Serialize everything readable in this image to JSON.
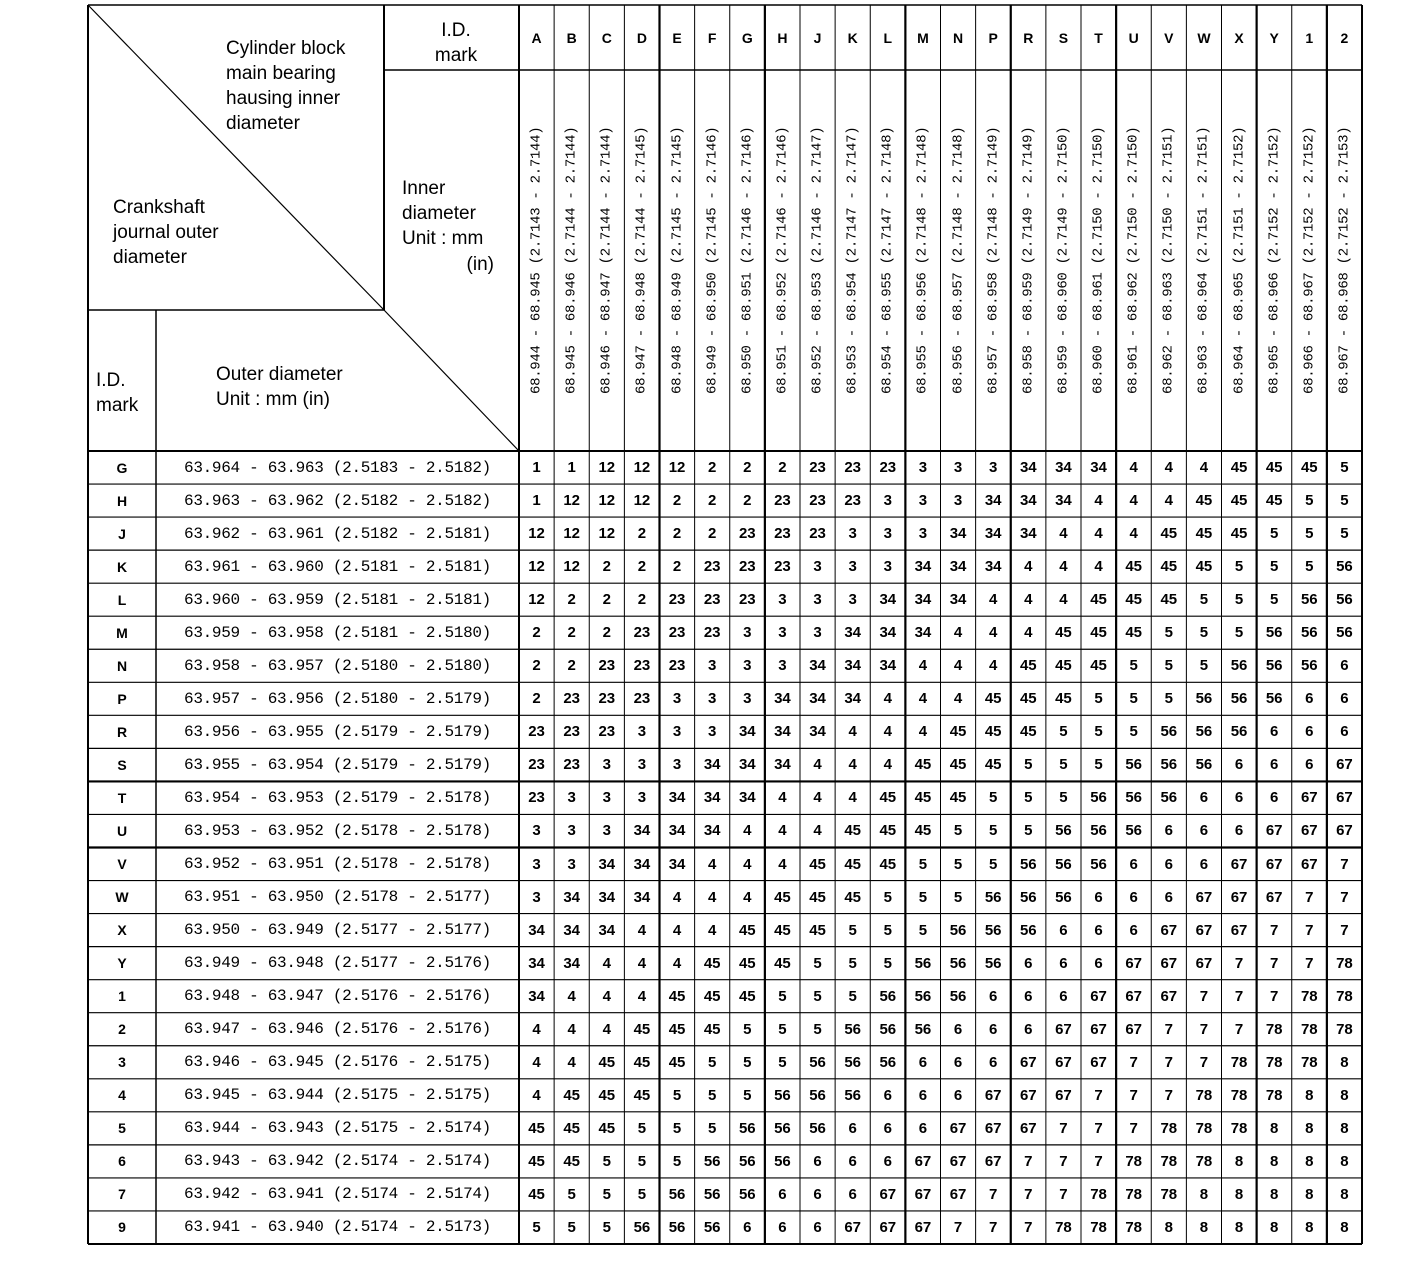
{
  "header": {
    "cylinder_block_label": "Cylinder block main bearing hausing inner diameter",
    "crankshaft_label": "Crankshaft journal outer diameter",
    "id_mark_top": "I.D. mark",
    "inner_diameter_label": "Inner diameter Unit : mm",
    "inner_diameter_unit_in": "(in)",
    "id_mark_left": "I.D. mark",
    "outer_diameter_label": "Outer diameter Unit : mm (in)"
  },
  "columns": [
    {
      "mark": "A",
      "range": "68.944 - 68.945 (2.7143 - 2.7144)"
    },
    {
      "mark": "B",
      "range": "68.945 - 68.946 (2.7144 - 2.7144)"
    },
    {
      "mark": "C",
      "range": "68.946 - 68.947 (2.7144 - 2.7144)"
    },
    {
      "mark": "D",
      "range": "68.947 - 68.948 (2.7144 - 2.7145)"
    },
    {
      "mark": "E",
      "range": "68.948 - 68.949 (2.7145 - 2.7145)"
    },
    {
      "mark": "F",
      "range": "68.949 - 68.950 (2.7145 - 2.7146)"
    },
    {
      "mark": "G",
      "range": "68.950 - 68.951 (2.7146 - 2.7146)"
    },
    {
      "mark": "H",
      "range": "68.951 - 68.952 (2.7146 - 2.7146)"
    },
    {
      "mark": "J",
      "range": "68.952 - 68.953 (2.7146 - 2.7147)"
    },
    {
      "mark": "K",
      "range": "68.953 - 68.954 (2.7147 - 2.7147)"
    },
    {
      "mark": "L",
      "range": "68.954 - 68.955 (2.7147 - 2.7148)"
    },
    {
      "mark": "M",
      "range": "68.955 - 68.956 (2.7148 - 2.7148)"
    },
    {
      "mark": "N",
      "range": "68.956 - 68.957 (2.7148 - 2.7148)"
    },
    {
      "mark": "P",
      "range": "68.957 - 68.958 (2.7148 - 2.7149)"
    },
    {
      "mark": "R",
      "range": "68.958 - 68.959 (2.7149 - 2.7149)"
    },
    {
      "mark": "S",
      "range": "68.959 - 68.960 (2.7149 - 2.7150)"
    },
    {
      "mark": "T",
      "range": "68.960 - 68.961 (2.7150 - 2.7150)"
    },
    {
      "mark": "U",
      "range": "68.961 - 68.962 (2.7150 - 2.7150)"
    },
    {
      "mark": "V",
      "range": "68.962 - 68.963 (2.7150 - 2.7151)"
    },
    {
      "mark": "W",
      "range": "68.963 - 68.964 (2.7151 - 2.7151)"
    },
    {
      "mark": "X",
      "range": "68.964 - 68.965 (2.7151 - 2.7152)"
    },
    {
      "mark": "Y",
      "range": "68.965 - 68.966 (2.7152 - 2.7152)"
    },
    {
      "mark": "1",
      "range": "68.966 - 68.967 (2.7152 - 2.7152)"
    },
    {
      "mark": "2",
      "range": "68.967 - 68.968 (2.7152 - 2.7153)"
    }
  ],
  "rows": [
    {
      "mark": "G",
      "range": "63.964 - 63.963 (2.5183 - 2.5182)",
      "values": [
        "1",
        "1",
        "12",
        "12",
        "12",
        "2",
        "2",
        "2",
        "23",
        "23",
        "23",
        "3",
        "3",
        "3",
        "34",
        "34",
        "34",
        "4",
        "4",
        "4",
        "45",
        "45",
        "45",
        "5"
      ]
    },
    {
      "mark": "H",
      "range": "63.963 - 63.962 (2.5182 - 2.5182)",
      "values": [
        "1",
        "12",
        "12",
        "12",
        "2",
        "2",
        "2",
        "23",
        "23",
        "23",
        "3",
        "3",
        "3",
        "34",
        "34",
        "34",
        "4",
        "4",
        "4",
        "45",
        "45",
        "45",
        "5",
        "5"
      ]
    },
    {
      "mark": "J",
      "range": "63.962 - 63.961 (2.5182 - 2.5181)",
      "values": [
        "12",
        "12",
        "12",
        "2",
        "2",
        "2",
        "23",
        "23",
        "23",
        "3",
        "3",
        "3",
        "34",
        "34",
        "34",
        "4",
        "4",
        "4",
        "45",
        "45",
        "45",
        "5",
        "5",
        "5"
      ]
    },
    {
      "mark": "K",
      "range": "63.961 - 63.960 (2.5181 - 2.5181)",
      "values": [
        "12",
        "12",
        "2",
        "2",
        "2",
        "23",
        "23",
        "23",
        "3",
        "3",
        "3",
        "34",
        "34",
        "34",
        "4",
        "4",
        "4",
        "45",
        "45",
        "45",
        "5",
        "5",
        "5",
        "56"
      ]
    },
    {
      "mark": "L",
      "range": "63.960 - 63.959 (2.5181 - 2.5181)",
      "values": [
        "12",
        "2",
        "2",
        "2",
        "23",
        "23",
        "23",
        "3",
        "3",
        "3",
        "34",
        "34",
        "34",
        "4",
        "4",
        "4",
        "45",
        "45",
        "45",
        "5",
        "5",
        "5",
        "56",
        "56"
      ]
    },
    {
      "mark": "M",
      "range": "63.959 - 63.958 (2.5181 - 2.5180)",
      "values": [
        "2",
        "2",
        "2",
        "23",
        "23",
        "23",
        "3",
        "3",
        "3",
        "34",
        "34",
        "34",
        "4",
        "4",
        "4",
        "45",
        "45",
        "45",
        "5",
        "5",
        "5",
        "56",
        "56",
        "56"
      ]
    },
    {
      "mark": "N",
      "range": "63.958 - 63.957 (2.5180 - 2.5180)",
      "values": [
        "2",
        "2",
        "23",
        "23",
        "23",
        "3",
        "3",
        "3",
        "34",
        "34",
        "34",
        "4",
        "4",
        "4",
        "45",
        "45",
        "45",
        "5",
        "5",
        "5",
        "56",
        "56",
        "56",
        "6"
      ]
    },
    {
      "mark": "P",
      "range": "63.957 - 63.956 (2.5180 - 2.5179)",
      "values": [
        "2",
        "23",
        "23",
        "23",
        "3",
        "3",
        "3",
        "34",
        "34",
        "34",
        "4",
        "4",
        "4",
        "45",
        "45",
        "45",
        "5",
        "5",
        "5",
        "56",
        "56",
        "56",
        "6",
        "6"
      ]
    },
    {
      "mark": "R",
      "range": "63.956 - 63.955 (2.5179 - 2.5179)",
      "values": [
        "23",
        "23",
        "23",
        "3",
        "3",
        "3",
        "34",
        "34",
        "34",
        "4",
        "4",
        "4",
        "45",
        "45",
        "45",
        "5",
        "5",
        "5",
        "56",
        "56",
        "56",
        "6",
        "6",
        "6"
      ]
    },
    {
      "mark": "S",
      "range": "63.955 - 63.954 (2.5179 - 2.5179)",
      "values": [
        "23",
        "23",
        "3",
        "3",
        "3",
        "34",
        "34",
        "34",
        "4",
        "4",
        "4",
        "45",
        "45",
        "45",
        "5",
        "5",
        "5",
        "56",
        "56",
        "56",
        "6",
        "6",
        "6",
        "67"
      ]
    },
    {
      "mark": "T",
      "range": "63.954 - 63.953 (2.5179 - 2.5178)",
      "values": [
        "23",
        "3",
        "3",
        "3",
        "34",
        "34",
        "34",
        "4",
        "4",
        "4",
        "45",
        "45",
        "45",
        "5",
        "5",
        "5",
        "56",
        "56",
        "56",
        "6",
        "6",
        "6",
        "67",
        "67"
      ]
    },
    {
      "mark": "U",
      "range": "63.953 - 63.952 (2.5178 - 2.5178)",
      "values": [
        "3",
        "3",
        "3",
        "34",
        "34",
        "34",
        "4",
        "4",
        "4",
        "45",
        "45",
        "45",
        "5",
        "5",
        "5",
        "56",
        "56",
        "56",
        "6",
        "6",
        "6",
        "67",
        "67",
        "67"
      ]
    },
    {
      "mark": "V",
      "range": "63.952 - 63.951 (2.5178 - 2.5178)",
      "values": [
        "3",
        "3",
        "34",
        "34",
        "34",
        "4",
        "4",
        "4",
        "45",
        "45",
        "45",
        "5",
        "5",
        "5",
        "56",
        "56",
        "56",
        "6",
        "6",
        "6",
        "67",
        "67",
        "67",
        "7"
      ]
    },
    {
      "mark": "W",
      "range": "63.951 - 63.950 (2.5178 - 2.5177)",
      "values": [
        "3",
        "34",
        "34",
        "34",
        "4",
        "4",
        "4",
        "45",
        "45",
        "45",
        "5",
        "5",
        "5",
        "56",
        "56",
        "56",
        "6",
        "6",
        "6",
        "67",
        "67",
        "67",
        "7",
        "7"
      ]
    },
    {
      "mark": "X",
      "range": "63.950 - 63.949 (2.5177 - 2.5177)",
      "values": [
        "34",
        "34",
        "34",
        "4",
        "4",
        "4",
        "45",
        "45",
        "45",
        "5",
        "5",
        "5",
        "56",
        "56",
        "56",
        "6",
        "6",
        "6",
        "67",
        "67",
        "67",
        "7",
        "7",
        "7"
      ]
    },
    {
      "mark": "Y",
      "range": "63.949 - 63.948 (2.5177 - 2.5176)",
      "values": [
        "34",
        "34",
        "4",
        "4",
        "4",
        "45",
        "45",
        "45",
        "5",
        "5",
        "5",
        "56",
        "56",
        "56",
        "6",
        "6",
        "6",
        "67",
        "67",
        "67",
        "7",
        "7",
        "7",
        "78"
      ]
    },
    {
      "mark": "1",
      "range": "63.948 - 63.947 (2.5176 - 2.5176)",
      "values": [
        "34",
        "4",
        "4",
        "4",
        "45",
        "45",
        "45",
        "5",
        "5",
        "5",
        "56",
        "56",
        "56",
        "6",
        "6",
        "6",
        "67",
        "67",
        "67",
        "7",
        "7",
        "7",
        "78",
        "78"
      ]
    },
    {
      "mark": "2",
      "range": "63.947 - 63.946 (2.5176 - 2.5176)",
      "values": [
        "4",
        "4",
        "4",
        "45",
        "45",
        "45",
        "5",
        "5",
        "5",
        "56",
        "56",
        "56",
        "6",
        "6",
        "6",
        "67",
        "67",
        "67",
        "7",
        "7",
        "7",
        "78",
        "78",
        "78"
      ]
    },
    {
      "mark": "3",
      "range": "63.946 - 63.945 (2.5176 - 2.5175)",
      "values": [
        "4",
        "4",
        "45",
        "45",
        "45",
        "5",
        "5",
        "5",
        "56",
        "56",
        "56",
        "6",
        "6",
        "6",
        "67",
        "67",
        "67",
        "7",
        "7",
        "7",
        "78",
        "78",
        "78",
        "8"
      ]
    },
    {
      "mark": "4",
      "range": "63.945 - 63.944 (2.5175 - 2.5175)",
      "values": [
        "4",
        "45",
        "45",
        "45",
        "5",
        "5",
        "5",
        "56",
        "56",
        "56",
        "6",
        "6",
        "6",
        "67",
        "67",
        "67",
        "7",
        "7",
        "7",
        "78",
        "78",
        "78",
        "8",
        "8"
      ]
    },
    {
      "mark": "5",
      "range": "63.944 - 63.943 (2.5175 - 2.5174)",
      "values": [
        "45",
        "45",
        "45",
        "5",
        "5",
        "5",
        "56",
        "56",
        "56",
        "6",
        "6",
        "6",
        "67",
        "67",
        "67",
        "7",
        "7",
        "7",
        "78",
        "78",
        "78",
        "8",
        "8",
        "8"
      ]
    },
    {
      "mark": "6",
      "range": "63.943 - 63.942 (2.5174 - 2.5174)",
      "values": [
        "45",
        "45",
        "5",
        "5",
        "5",
        "56",
        "56",
        "56",
        "6",
        "6",
        "6",
        "67",
        "67",
        "67",
        "7",
        "7",
        "7",
        "78",
        "78",
        "78",
        "8",
        "8",
        "8",
        "8"
      ]
    },
    {
      "mark": "7",
      "range": "63.942 - 63.941 (2.5174 - 2.5174)",
      "values": [
        "45",
        "5",
        "5",
        "5",
        "56",
        "56",
        "56",
        "6",
        "6",
        "6",
        "67",
        "67",
        "67",
        "7",
        "7",
        "7",
        "78",
        "78",
        "78",
        "8",
        "8",
        "8",
        "8",
        "8"
      ]
    },
    {
      "mark": "9",
      "range": "63.941 - 63.940 (2.5174 - 2.5173)",
      "values": [
        "5",
        "5",
        "5",
        "56",
        "56",
        "56",
        "6",
        "6",
        "6",
        "67",
        "67",
        "67",
        "7",
        "7",
        "7",
        "78",
        "78",
        "78",
        "8",
        "8",
        "8",
        "8",
        "8",
        "8"
      ]
    }
  ]
}
